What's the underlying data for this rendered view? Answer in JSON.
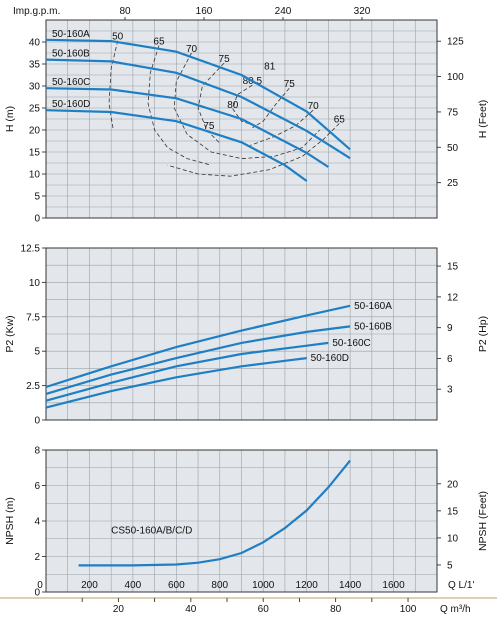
{
  "colors": {
    "curve": "#1f7fc4",
    "panel": "#e3e7eb",
    "grid": "#9aa2aa",
    "iso": "#333333"
  },
  "top_axis": {
    "label": "Imp.g.p.m.",
    "ticks": [
      80,
      160,
      240,
      320
    ]
  },
  "bottom_axes": {
    "ls": {
      "label": "Q  L/1'",
      "ticks": [
        0,
        200,
        400,
        600,
        800,
        1000,
        1200,
        1400,
        1600
      ]
    },
    "m3h": {
      "label": "Q  m³/h",
      "ticks": [
        20,
        40,
        60,
        80,
        100
      ]
    }
  },
  "chart_data": [
    {
      "type": "line",
      "panel": "head",
      "ylabel": "H (m)",
      "ylabel_right": "H (Feet)",
      "xlim": [
        0,
        1800
      ],
      "ylim": [
        0,
        45
      ],
      "yticks": [
        0,
        5,
        10,
        15,
        20,
        25,
        30,
        35,
        40
      ],
      "yticks_right": [
        25,
        50,
        75,
        100,
        125
      ],
      "series": [
        {
          "name": "50-160A",
          "x": [
            0,
            300,
            600,
            900,
            1200,
            1400
          ],
          "values": [
            40.5,
            40.2,
            37.8,
            32.5,
            24.2,
            15.6
          ]
        },
        {
          "name": "50-160B",
          "x": [
            0,
            300,
            600,
            900,
            1200,
            1400
          ],
          "values": [
            36.0,
            35.6,
            33.0,
            27.5,
            19.8,
            13.6
          ]
        },
        {
          "name": "50-160C",
          "x": [
            0,
            300,
            600,
            900,
            1200,
            1300
          ],
          "values": [
            29.5,
            29.2,
            27.2,
            22.5,
            14.8,
            11.6
          ]
        },
        {
          "name": "50-160D",
          "x": [
            0,
            300,
            600,
            900,
            1100,
            1200
          ],
          "values": [
            24.5,
            24.1,
            22.0,
            17.2,
            12.0,
            8.4
          ]
        }
      ],
      "efficiency_labels": [
        {
          "text": "50",
          "x": 330,
          "y": 40.3
        },
        {
          "text": "65",
          "x": 520,
          "y": 39.2
        },
        {
          "text": "70",
          "x": 670,
          "y": 37.5
        },
        {
          "text": "75",
          "x": 820,
          "y": 35.2
        },
        {
          "text": "81",
          "x": 1030,
          "y": 33.5
        },
        {
          "text": "80.5",
          "x": 950,
          "y": 30.2
        },
        {
          "text": "75",
          "x": 1120,
          "y": 29.5
        },
        {
          "text": "80",
          "x": 860,
          "y": 24.8
        },
        {
          "text": "70",
          "x": 1230,
          "y": 24.5
        },
        {
          "text": "75",
          "x": 750,
          "y": 20.0
        },
        {
          "text": "65",
          "x": 1350,
          "y": 21.5
        }
      ]
    },
    {
      "type": "line",
      "panel": "power",
      "ylabel": "P2 (Kw)",
      "ylabel_right": "P2 (Hp)",
      "xlim": [
        0,
        1800
      ],
      "ylim": [
        0,
        12.5
      ],
      "yticks": [
        0,
        2.5,
        5,
        7.5,
        10,
        12.5
      ],
      "yticks_right": [
        3,
        6,
        9,
        12,
        15
      ],
      "series": [
        {
          "name": "50-160A",
          "x": [
            0,
            300,
            600,
            900,
            1200,
            1400
          ],
          "values": [
            2.4,
            3.9,
            5.3,
            6.5,
            7.6,
            8.3
          ]
        },
        {
          "name": "50-160B",
          "x": [
            0,
            300,
            600,
            900,
            1200,
            1400
          ],
          "values": [
            1.9,
            3.3,
            4.5,
            5.6,
            6.4,
            6.8
          ]
        },
        {
          "name": "50-160C",
          "x": [
            0,
            300,
            600,
            900,
            1200,
            1300
          ],
          "values": [
            1.4,
            2.7,
            3.9,
            4.8,
            5.4,
            5.6
          ]
        },
        {
          "name": "50-160D",
          "x": [
            0,
            300,
            600,
            900,
            1100,
            1200
          ],
          "values": [
            0.9,
            2.1,
            3.1,
            3.9,
            4.3,
            4.5
          ]
        }
      ]
    },
    {
      "type": "line",
      "panel": "npsh",
      "ylabel": "NPSH (m)",
      "ylabel_right": "NPSH (Feet)",
      "xlim": [
        0,
        1800
      ],
      "ylim": [
        0,
        8
      ],
      "yticks": [
        0,
        2,
        4,
        6,
        8
      ],
      "yticks_right": [
        5,
        10,
        15,
        20
      ],
      "series": [
        {
          "name": "CS50-160A/B/C/D",
          "x": [
            150,
            400,
            600,
            700,
            800,
            900,
            1000,
            1100,
            1200,
            1300,
            1400
          ],
          "values": [
            1.5,
            1.5,
            1.55,
            1.65,
            1.85,
            2.2,
            2.8,
            3.6,
            4.6,
            5.9,
            7.4
          ]
        }
      ]
    }
  ]
}
